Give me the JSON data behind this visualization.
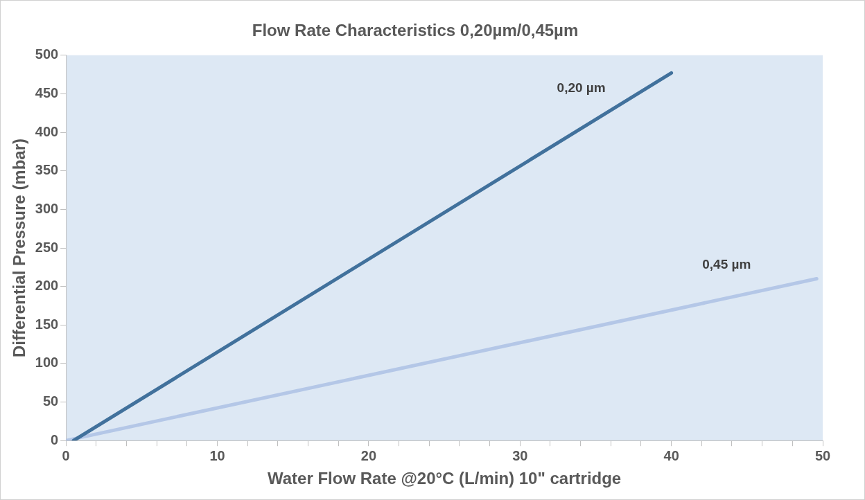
{
  "chart_data": {
    "type": "line",
    "title": "Flow Rate Characteristics 0,20µm/0,45µm",
    "xlabel": "Water Flow Rate @20°C (L/min) 10\" cartridge",
    "ylabel": "Differential Pressure (mbar)",
    "series": [
      {
        "name": "0,20 µm",
        "color": "#41719c",
        "x": [
          0.5,
          40
        ],
        "values": [
          0,
          477
        ]
      },
      {
        "name": "0,45 µm",
        "color": "#b4c7e7",
        "x": [
          0,
          49.6
        ],
        "values": [
          0,
          210
        ]
      }
    ],
    "xlim": [
      0,
      50
    ],
    "xticks": [
      0,
      {
        "value": 2,
        "label": null
      },
      {
        "value": 4,
        "label": null
      },
      {
        "value": 6,
        "label": null
      },
      {
        "value": 8,
        "label": null
      },
      10,
      {
        "value": 12,
        "label": null
      },
      {
        "value": 14,
        "label": null
      },
      {
        "value": 16,
        "label": null
      },
      {
        "value": 18,
        "label": null
      },
      20,
      {
        "value": 22,
        "label": null
      },
      {
        "value": 24,
        "label": null
      },
      {
        "value": 26,
        "label": null
      },
      {
        "value": 28,
        "label": null
      },
      30,
      {
        "value": 32,
        "label": null
      },
      {
        "value": 34,
        "label": null
      },
      {
        "value": 36,
        "label": null
      },
      {
        "value": 38,
        "label": null
      },
      40,
      {
        "value": 42,
        "label": null
      },
      {
        "value": 44,
        "label": null
      },
      {
        "value": 46,
        "label": null
      },
      {
        "value": 48,
        "label": null
      },
      50
    ],
    "ylim": [
      0,
      500
    ],
    "yticks": [
      0,
      50,
      100,
      150,
      200,
      250,
      300,
      350,
      400,
      450,
      500
    ],
    "grid": false,
    "legend": false,
    "marker": "none",
    "line_style": "solid"
  }
}
